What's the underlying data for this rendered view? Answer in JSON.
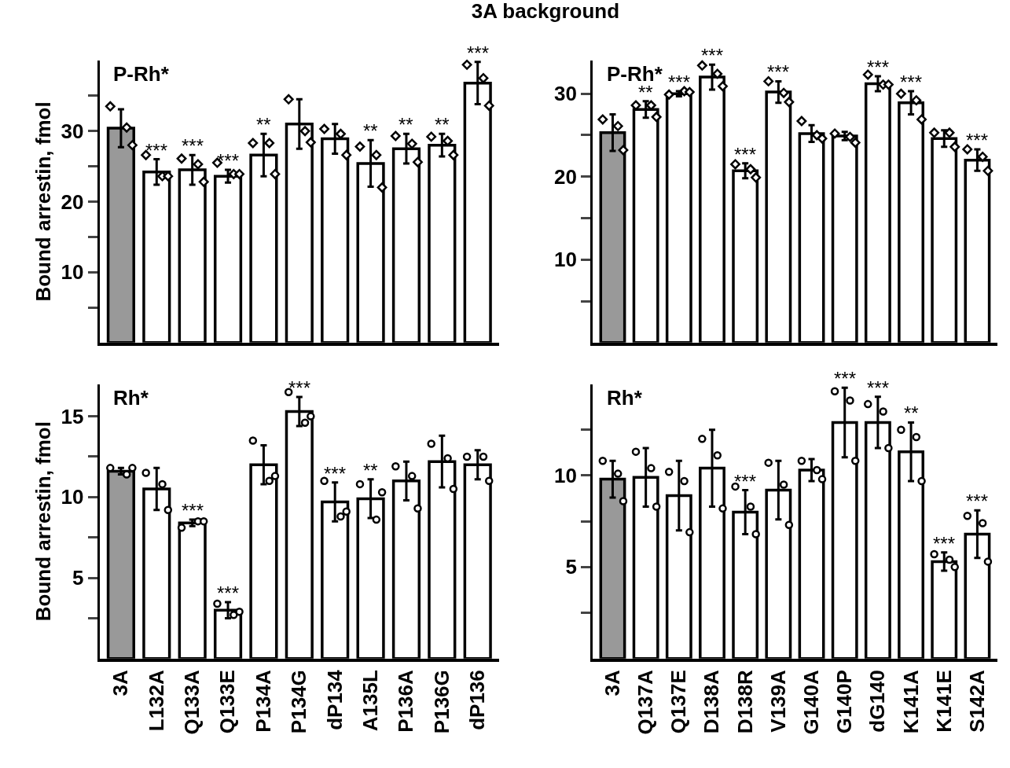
{
  "chart_data": [
    {
      "type": "bar",
      "title": "3A background",
      "ylabel": "Bound arrestin, fmol",
      "tick_labels": "y",
      "marker": "diamond",
      "categories": [
        "3A",
        "L132A",
        "Q133A",
        "Q133E",
        "P134A",
        "P134G",
        "dP134",
        "A135L",
        "P136A",
        "P136G",
        "dP136"
      ],
      "ylim": [
        0,
        40
      ],
      "yticks": [
        {
          "value": 5,
          "label": null
        },
        10,
        {
          "value": 15,
          "label": null
        },
        20,
        {
          "value": 25,
          "label": null
        },
        30,
        {
          "value": 35,
          "label": null
        }
      ],
      "series": [
        {
          "type": "bar",
          "colors": [
            "#999999",
            "#ffffff",
            "#ffffff",
            "#ffffff",
            "#ffffff",
            "#ffffff",
            "#ffffff",
            "#ffffff",
            "#ffffff",
            "#ffffff",
            "#ffffff"
          ],
          "values": [
            30.4,
            24.2,
            24.5,
            23.6,
            26.6,
            31.0,
            28.9,
            25.4,
            27.5,
            28.0,
            36.8
          ],
          "errors": [
            2.7,
            1.8,
            2.1,
            0.9,
            3.0,
            3.5,
            2.1,
            3.3,
            2.1,
            1.6,
            3.0
          ]
        },
        {
          "type": "scatter",
          "color": "#ffffff",
          "x": [
            "3A",
            "L132A",
            "Q133A",
            "Q133E",
            "P134A",
            "P134G",
            "dP134",
            "A135L",
            "P136A",
            "P136G",
            "dP136"
          ],
          "values": [
            33.5,
            26.6,
            26.1,
            25.5,
            28.3,
            34.5,
            30.3,
            27.8,
            29.3,
            29.2,
            39.4
          ]
        },
        {
          "type": "scatter",
          "color": "#ffffff",
          "x": [
            "3A",
            "L132A",
            "Q133A",
            "Q133E",
            "P134A",
            "P134G",
            "dP134",
            "A135L",
            "P136A",
            "P136G",
            "dP136"
          ],
          "values": [
            30.5,
            23.6,
            25.3,
            23.9,
            28.3,
            30.0,
            29.6,
            26.6,
            28.2,
            28.6,
            37.5
          ]
        },
        {
          "type": "scatter",
          "color": "#ffffff",
          "x": [
            "3A",
            "L132A",
            "Q133A",
            "Q133E",
            "P134A",
            "P134G",
            "dP134",
            "A135L",
            "P136A",
            "P136G",
            "dP136"
          ],
          "values": [
            28.0,
            23.6,
            22.8,
            23.9,
            23.9,
            28.4,
            26.6,
            22.0,
            25.6,
            26.6,
            33.6
          ]
        }
      ],
      "annotations": [
        "P-Rh*",
        {
          "text": "***",
          "x": "L132A",
          "y": 26.0
        },
        {
          "text": "***",
          "x": "Q133A",
          "y": 26.6
        },
        {
          "text": "***",
          "x": "Q133E",
          "y": 24.5
        },
        {
          "text": "**",
          "x": "P134A",
          "y": 29.6
        },
        {
          "text": "**",
          "x": "A135L",
          "y": 28.7
        },
        {
          "text": "**",
          "x": "P136A",
          "y": 29.6
        },
        {
          "text": "**",
          "x": "P136G",
          "y": 29.6
        },
        {
          "text": "***",
          "x": "dP136",
          "y": 39.8
        }
      ]
    },
    {
      "type": "bar",
      "tick_labels": "y",
      "marker": "diamond",
      "categories": [
        "3A",
        "Q137A",
        "Q137E",
        "D138A",
        "D138R",
        "V139A",
        "G140A",
        "G140P",
        "dG140",
        "K141A",
        "K141E",
        "S142A"
      ],
      "ylim": [
        0,
        34
      ],
      "yticks": [
        {
          "value": 5,
          "label": null
        },
        10,
        {
          "value": 15,
          "label": null
        },
        20,
        {
          "value": 25,
          "label": null
        },
        30
      ],
      "series": [
        {
          "type": "bar",
          "colors": [
            "#999999",
            "#ffffff",
            "#ffffff",
            "#ffffff",
            "#ffffff",
            "#ffffff",
            "#ffffff",
            "#ffffff",
            "#ffffff",
            "#ffffff",
            "#ffffff",
            "#ffffff"
          ],
          "values": [
            25.3,
            28.1,
            30.0,
            32.0,
            20.7,
            30.2,
            25.2,
            24.9,
            31.2,
            28.9,
            24.6,
            22.0
          ],
          "errors": [
            2.2,
            1.0,
            0.3,
            1.5,
            0.9,
            1.3,
            1.0,
            0.5,
            0.9,
            1.4,
            1.0,
            1.3
          ]
        },
        {
          "type": "scatter",
          "color": "#ffffff",
          "x": [
            "3A",
            "Q137A",
            "Q137E",
            "D138A",
            "D138R",
            "V139A",
            "G140A",
            "G140P",
            "dG140",
            "K141A",
            "K141E",
            "S142A"
          ],
          "values": [
            26.9,
            28.6,
            29.9,
            33.4,
            21.5,
            31.5,
            26.7,
            25.2,
            32.3,
            30.0,
            25.3,
            23.3
          ]
        },
        {
          "type": "scatter",
          "color": "#ffffff",
          "x": [
            "3A",
            "Q137A",
            "Q137E",
            "D138A",
            "D138R",
            "V139A",
            "G140A",
            "G140P",
            "dG140",
            "K141A",
            "K141E",
            "S142A"
          ],
          "values": [
            26.1,
            28.6,
            30.3,
            32.4,
            20.9,
            30.1,
            25.0,
            24.8,
            31.1,
            29.2,
            25.3,
            22.4
          ]
        },
        {
          "type": "scatter",
          "color": "#ffffff",
          "x": [
            "3A",
            "Q137A",
            "Q137E",
            "D138A",
            "D138R",
            "V139A",
            "G140A",
            "G140P",
            "dG140",
            "K141A",
            "K141E",
            "S142A"
          ],
          "values": [
            23.2,
            27.2,
            30.2,
            30.9,
            19.9,
            29.0,
            24.6,
            24.1,
            31.1,
            26.9,
            23.6,
            20.7
          ]
        }
      ],
      "annotations": [
        "P-Rh*",
        {
          "text": "**",
          "x": "Q137A",
          "y": 29.1
        },
        {
          "text": "***",
          "x": "Q137E",
          "y": 30.3
        },
        {
          "text": "***",
          "x": "D138A",
          "y": 33.5
        },
        {
          "text": "***",
          "x": "D138R",
          "y": 21.6
        },
        {
          "text": "***",
          "x": "V139A",
          "y": 31.5
        },
        {
          "text": "***",
          "x": "dG140",
          "y": 32.1
        },
        {
          "text": "***",
          "x": "K141A",
          "y": 30.3
        },
        {
          "text": "***",
          "x": "S142A",
          "y": 23.3
        }
      ]
    },
    {
      "type": "bar",
      "ylabel": "Bound arrestin, fmol",
      "marker": "circle",
      "categories": [
        "3A",
        "L132A",
        "Q133A",
        "Q133E",
        "P134A",
        "P134G",
        "dP134",
        "A135L",
        "P136A",
        "P136G",
        "dP136"
      ],
      "ylim": [
        0,
        17
      ],
      "yticks": [
        {
          "value": 2.5,
          "label": null
        },
        5,
        {
          "value": 7.5,
          "label": null
        },
        10,
        {
          "value": 12.5,
          "label": null
        },
        15
      ],
      "series": [
        {
          "type": "bar",
          "colors": [
            "#999999",
            "#ffffff",
            "#ffffff",
            "#ffffff",
            "#ffffff",
            "#ffffff",
            "#ffffff",
            "#ffffff",
            "#ffffff",
            "#ffffff",
            "#ffffff"
          ],
          "values": [
            11.6,
            10.5,
            8.4,
            3.0,
            12.0,
            15.3,
            9.7,
            9.9,
            11.0,
            12.2,
            12.0
          ],
          "errors": [
            0.2,
            1.3,
            0.2,
            0.5,
            1.2,
            0.9,
            1.2,
            1.2,
            1.2,
            1.6,
            0.9
          ]
        },
        {
          "type": "scatter",
          "color": "#ffffff",
          "x": [
            "3A",
            "L132A",
            "Q133A",
            "Q133E",
            "P134A",
            "P134G",
            "dP134",
            "A135L",
            "P136A",
            "P136G",
            "dP136"
          ],
          "values": [
            11.8,
            11.5,
            8.1,
            3.4,
            13.5,
            16.5,
            11.0,
            10.8,
            11.9,
            13.3,
            12.5
          ]
        },
        {
          "type": "scatter",
          "color": "#ffffff",
          "x": [
            "3A",
            "L132A",
            "Q133A",
            "Q133E",
            "P134A",
            "P134G",
            "dP134",
            "A135L",
            "P136A",
            "P136G",
            "dP136"
          ],
          "values": [
            11.4,
            10.8,
            8.5,
            2.7,
            11.0,
            14.6,
            8.8,
            8.6,
            11.3,
            12.4,
            12.5
          ]
        },
        {
          "type": "scatter",
          "color": "#ffffff",
          "x": [
            "3A",
            "L132A",
            "Q133A",
            "Q133E",
            "P134A",
            "P134G",
            "dP134",
            "A135L",
            "P136A",
            "P136G",
            "dP136"
          ],
          "values": [
            11.8,
            9.2,
            8.5,
            2.9,
            11.3,
            15.0,
            9.1,
            10.3,
            9.3,
            10.5,
            11.0
          ]
        }
      ],
      "annotations": [
        "Rh*",
        {
          "text": "***",
          "x": "Q133A",
          "y": 8.6
        },
        {
          "text": "***",
          "x": "Q133E",
          "y": 3.5
        },
        {
          "text": "***",
          "x": "P134G",
          "y": 16.2
        },
        {
          "text": "***",
          "x": "dP134",
          "y": 10.9
        },
        {
          "text": "**",
          "x": "A135L",
          "y": 11.1
        }
      ]
    },
    {
      "type": "bar",
      "marker": "circle",
      "categories": [
        "3A",
        "Q137A",
        "Q137E",
        "D138A",
        "D138R",
        "V139A",
        "G140A",
        "G140P",
        "dG140",
        "K141A",
        "K141E",
        "S142A"
      ],
      "ylim": [
        0,
        15
      ],
      "yticks": [
        {
          "value": 2.5,
          "label": null
        },
        5,
        {
          "value": 7.5,
          "label": null
        },
        10,
        {
          "value": 12.5,
          "label": null
        }
      ],
      "series": [
        {
          "type": "bar",
          "colors": [
            "#999999",
            "#ffffff",
            "#ffffff",
            "#ffffff",
            "#ffffff",
            "#ffffff",
            "#ffffff",
            "#ffffff",
            "#ffffff",
            "#ffffff",
            "#ffffff",
            "#ffffff"
          ],
          "values": [
            9.8,
            9.9,
            8.9,
            10.4,
            8.0,
            9.2,
            10.3,
            12.9,
            12.9,
            11.3,
            5.3,
            6.8
          ],
          "errors": [
            1.0,
            1.6,
            1.9,
            2.1,
            1.2,
            1.6,
            0.6,
            1.9,
            1.4,
            1.6,
            0.5,
            1.3
          ]
        },
        {
          "type": "scatter",
          "color": "#ffffff",
          "x": [
            "3A",
            "Q137A",
            "Q137E",
            "D138A",
            "D138R",
            "V139A",
            "G140A",
            "G140P",
            "dG140",
            "K141A",
            "K141E",
            "S142A"
          ],
          "values": [
            10.8,
            11.3,
            10.2,
            12.0,
            9.4,
            10.7,
            10.8,
            14.6,
            13.9,
            12.5,
            5.7,
            7.8
          ]
        },
        {
          "type": "scatter",
          "color": "#ffffff",
          "x": [
            "3A",
            "Q137A",
            "Q137E",
            "D138A",
            "D138R",
            "V139A",
            "G140A",
            "G140P",
            "dG140",
            "K141A",
            "K141E",
            "S142A"
          ],
          "values": [
            10.1,
            10.4,
            9.7,
            11.1,
            8.3,
            9.5,
            10.3,
            14.1,
            13.5,
            12.1,
            5.4,
            7.4
          ]
        },
        {
          "type": "scatter",
          "color": "#ffffff",
          "x": [
            "3A",
            "Q137A",
            "Q137E",
            "D138A",
            "D138R",
            "V139A",
            "G140A",
            "G140P",
            "dG140",
            "K141A",
            "K141E",
            "S142A"
          ],
          "values": [
            8.6,
            8.3,
            6.9,
            8.2,
            6.8,
            7.3,
            9.8,
            10.8,
            11.5,
            9.7,
            5.0,
            5.3
          ]
        }
      ],
      "annotations": [
        "Rh*",
        {
          "text": "***",
          "x": "D138R",
          "y": 9.2
        },
        {
          "text": "***",
          "x": "G140P",
          "y": 14.8
        },
        {
          "text": "***",
          "x": "dG140",
          "y": 14.3
        },
        {
          "text": "**",
          "x": "K141A",
          "y": 12.9
        },
        {
          "text": "***",
          "x": "K141E",
          "y": 5.8
        },
        {
          "text": "***",
          "x": "S142A",
          "y": 8.1
        }
      ]
    }
  ]
}
